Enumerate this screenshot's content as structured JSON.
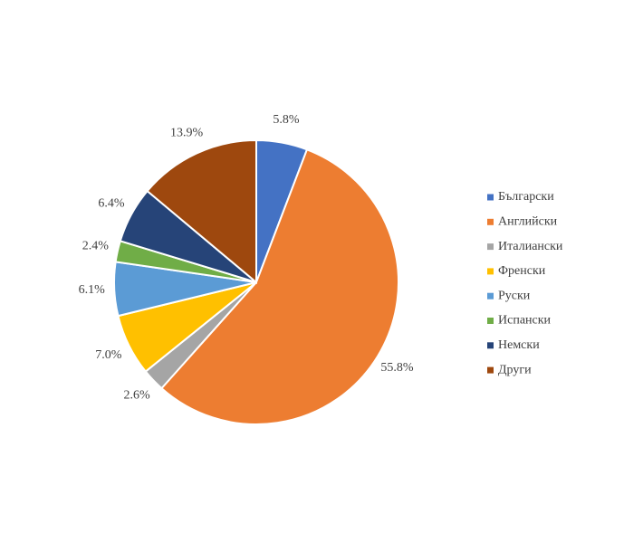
{
  "chart_data": {
    "type": "pie",
    "categories": [
      "Български",
      "Английски",
      "Италиански",
      "Френски",
      "Руски",
      "Испански",
      "Немски",
      "Други"
    ],
    "values": [
      5.8,
      55.8,
      2.6,
      7.0,
      6.1,
      2.4,
      6.4,
      13.9
    ],
    "value_labels": [
      "5.8%",
      "55.8%",
      "2.6%",
      "7.0%",
      "6.1%",
      "2.4%",
      "6.4%",
      "13.9%"
    ],
    "colors": [
      "#4472c4",
      "#ed7d31",
      "#a5a5a5",
      "#ffc000",
      "#5b9bd5",
      "#70ad47",
      "#264478",
      "#9e480e"
    ],
    "legend": "right"
  }
}
